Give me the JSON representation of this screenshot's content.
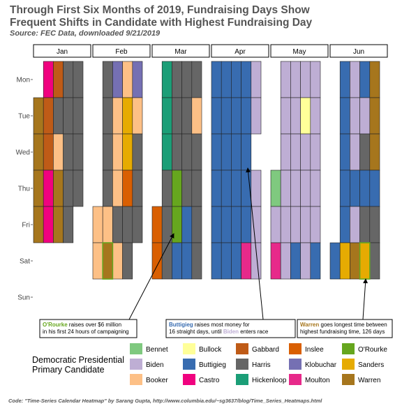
{
  "chart_data": {
    "type": "heatmap",
    "title_lines": [
      "Through First Six Months of 2019, Fundraising Days Show",
      "Frequent Shifts in Candidate with Highest Fundraising Day"
    ],
    "subtitle": "Source: FEC Data, downloaded 9/21/2019",
    "months": [
      "Jan",
      "Feb",
      "Mar",
      "Apr",
      "May",
      "Jun"
    ],
    "weekdays": [
      "Mon",
      "Tue",
      "Wed",
      "Thu",
      "Fri",
      "Sat",
      "Sun"
    ],
    "candidates": [
      {
        "name": "Bennet",
        "color": "#7fc97f"
      },
      {
        "name": "Biden",
        "color": "#beaed4"
      },
      {
        "name": "Booker",
        "color": "#fdc086"
      },
      {
        "name": "Bullock",
        "color": "#ffff99"
      },
      {
        "name": "Buttigieg",
        "color": "#386cb0"
      },
      {
        "name": "Castro",
        "color": "#f0027f"
      },
      {
        "name": "Gabbard",
        "color": "#bf5b17"
      },
      {
        "name": "Harris",
        "color": "#666666"
      },
      {
        "name": "Hickenloop",
        "color": "#1b9e77"
      },
      {
        "name": "Inslee",
        "color": "#d95f02"
      },
      {
        "name": "Klobuchar",
        "color": "#7570b3"
      },
      {
        "name": "Moulton",
        "color": "#e7298a"
      },
      {
        "name": "O'Rourke",
        "color": "#66a61e"
      },
      {
        "name": "Sanders",
        "color": "#e6ab02"
      },
      {
        "name": "Warren",
        "color": "#a6761d"
      }
    ],
    "grid": {
      "Jan": [
        [
          "",
          "Warren",
          "Warren",
          "Warren",
          "Warren"
        ],
        [
          "Castro",
          "Gabbard",
          "Gabbard",
          "Castro",
          "Castro"
        ],
        [
          "Gabbard",
          "Harris",
          "Booker",
          "Warren",
          "Warren"
        ],
        [
          "Harris",
          "Harris",
          "Harris",
          "Harris",
          "Harris"
        ],
        [
          "Harris",
          "Harris",
          "Harris",
          "Harris",
          ""
        ]
      ],
      "Feb": [
        [
          "",
          "",
          "",
          "",
          "Booker",
          "Booker"
        ],
        [
          "Harris",
          "Harris",
          "Harris",
          "Harris",
          "Booker",
          "Warren"
        ],
        [
          "Klobuchar",
          "Booker",
          "Booker",
          "Booker",
          "Harris",
          "Booker"
        ],
        [
          "Booker",
          "Sanders",
          "Sanders",
          "Inslee",
          "Harris",
          "Harris"
        ],
        [
          "Klobuchar",
          "Booker",
          "Harris",
          "Harris",
          "Harris",
          ""
        ]
      ],
      "Mar": [
        [
          "",
          "",
          "",
          "",
          "Inslee",
          "Inslee"
        ],
        [
          "Hickenloop",
          "Hickenloop",
          "Hickenloop",
          "Harris",
          "Harris",
          "Harris"
        ],
        [
          "Harris",
          "Harris",
          "Harris",
          "O'Rourke",
          "O'Rourke",
          "Buttigieg"
        ],
        [
          "Harris",
          "Harris",
          "Harris",
          "Harris",
          "Buttigieg",
          "Buttigieg"
        ],
        [
          "Harris",
          "Booker",
          "Harris",
          "Harris",
          "Harris",
          "Harris"
        ]
      ],
      "Apr": [
        [
          "Buttigieg",
          "Buttigieg",
          "Buttigieg",
          "Buttigieg",
          "Buttigieg",
          "Buttigieg"
        ],
        [
          "Buttigieg",
          "Buttigieg",
          "Buttigieg",
          "Buttigieg",
          "Buttigieg",
          "Buttigieg"
        ],
        [
          "Buttigieg",
          "Buttigieg",
          "Buttigieg",
          "Buttigieg",
          "Buttigieg",
          "Buttigieg"
        ],
        [
          "Buttigieg",
          "Buttigieg",
          "Buttigieg",
          "Buttigieg",
          "Buttigieg",
          "Moulton"
        ],
        [
          "Biden",
          "Biden",
          "",
          "Biden",
          "Biden",
          "Biden"
        ]
      ],
      "May": [
        [
          "",
          "",
          "",
          "Bennet",
          "Biden",
          "Moulton"
        ],
        [
          "Biden",
          "Biden",
          "Biden",
          "Biden",
          "Biden",
          "Biden"
        ],
        [
          "Biden",
          "Biden",
          "Biden",
          "Biden",
          "Biden",
          "Buttigieg"
        ],
        [
          "Biden",
          "Bullock",
          "Biden",
          "Biden",
          "Biden",
          "Biden"
        ],
        [
          "Biden",
          "Biden",
          "Biden",
          "Biden",
          "Biden",
          "Buttigieg"
        ]
      ],
      "Jun": [
        [
          "",
          "",
          "",
          "",
          "",
          "Buttigieg"
        ],
        [
          "Buttigieg",
          "Buttigieg",
          "Buttigieg",
          "Buttigieg",
          "Buttigieg",
          "Sanders"
        ],
        [
          "Biden",
          "Biden",
          "Biden",
          "Buttigieg",
          "Biden",
          "Warren"
        ],
        [
          "Buttigieg",
          "Biden",
          "Harris",
          "Buttigieg",
          "Harris",
          "Sanders"
        ],
        [
          "Warren",
          "Warren",
          "Warren",
          "Buttigieg",
          "Harris",
          "Harris"
        ]
      ]
    },
    "highlights": [
      {
        "month": "Feb",
        "week": 1,
        "day_from": 5,
        "day_to": 6,
        "color": "#66a61e"
      },
      {
        "month": "Jun",
        "week": 3,
        "day_from": 5,
        "day_to": 6,
        "color": "#66a61e"
      }
    ],
    "annotations": [
      {
        "lines": [
          [
            {
              "t": "O'Rourke",
              "c": "#66a61e",
              "b": true
            },
            {
              "t": " raises over $6 million",
              "c": "#000000",
              "b": false
            }
          ],
          [
            {
              "t": "in his first 24 hours of campaigning",
              "c": "#000000",
              "b": false
            }
          ]
        ]
      },
      {
        "lines": [
          [
            {
              "t": "Buttigieg",
              "c": "#386cb0",
              "b": true
            },
            {
              "t": " raises most money for",
              "c": "#000000",
              "b": false
            }
          ],
          [
            {
              "t": "16 straight days, until ",
              "c": "#000000",
              "b": false
            },
            {
              "t": "Biden",
              "c": "#beaed4",
              "b": true
            },
            {
              "t": " enters race",
              "c": "#000000",
              "b": false
            }
          ]
        ]
      },
      {
        "lines": [
          [
            {
              "t": "Warren",
              "c": "#a6761d",
              "b": true
            },
            {
              "t": " goes longest time between",
              "c": "#000000",
              "b": false
            }
          ],
          [
            {
              "t": "highest fundraising time, 126 days",
              "c": "#000000",
              "b": false
            }
          ]
        ]
      }
    ],
    "legend_title": [
      "Democratic Presidential",
      "Primary Candidate"
    ],
    "caption": "Code: \"Time-Series Calendar Heatmap\" by Sarang Gupta, http://www.columbia.edu/~sg3637/blog/Time_Series_Heatmaps.html"
  }
}
